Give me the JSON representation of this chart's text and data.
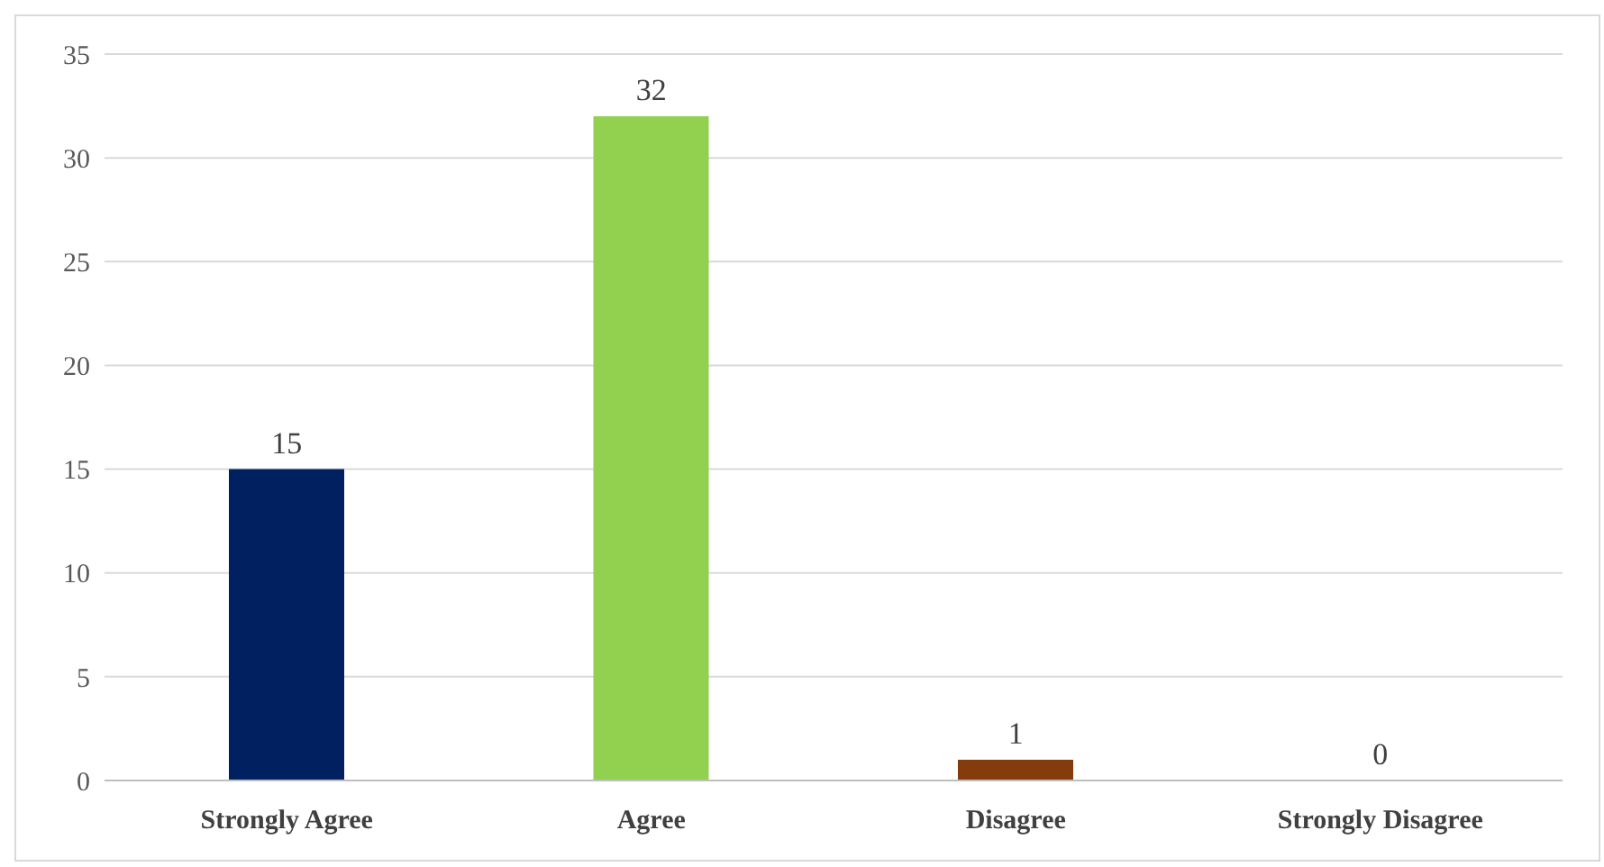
{
  "chart_data": {
    "type": "bar",
    "categories": [
      "Strongly Agree",
      "Agree",
      "Disagree",
      "Strongly Disagree"
    ],
    "values": [
      15,
      32,
      1,
      0
    ],
    "colors": [
      "#002060",
      "#92d050",
      "#843c0c",
      "#a5a5a5"
    ],
    "ylim": [
      0,
      35
    ],
    "yticks": [
      0,
      5,
      10,
      15,
      20,
      25,
      30,
      35
    ],
    "grid": "y",
    "data_labels": true
  }
}
